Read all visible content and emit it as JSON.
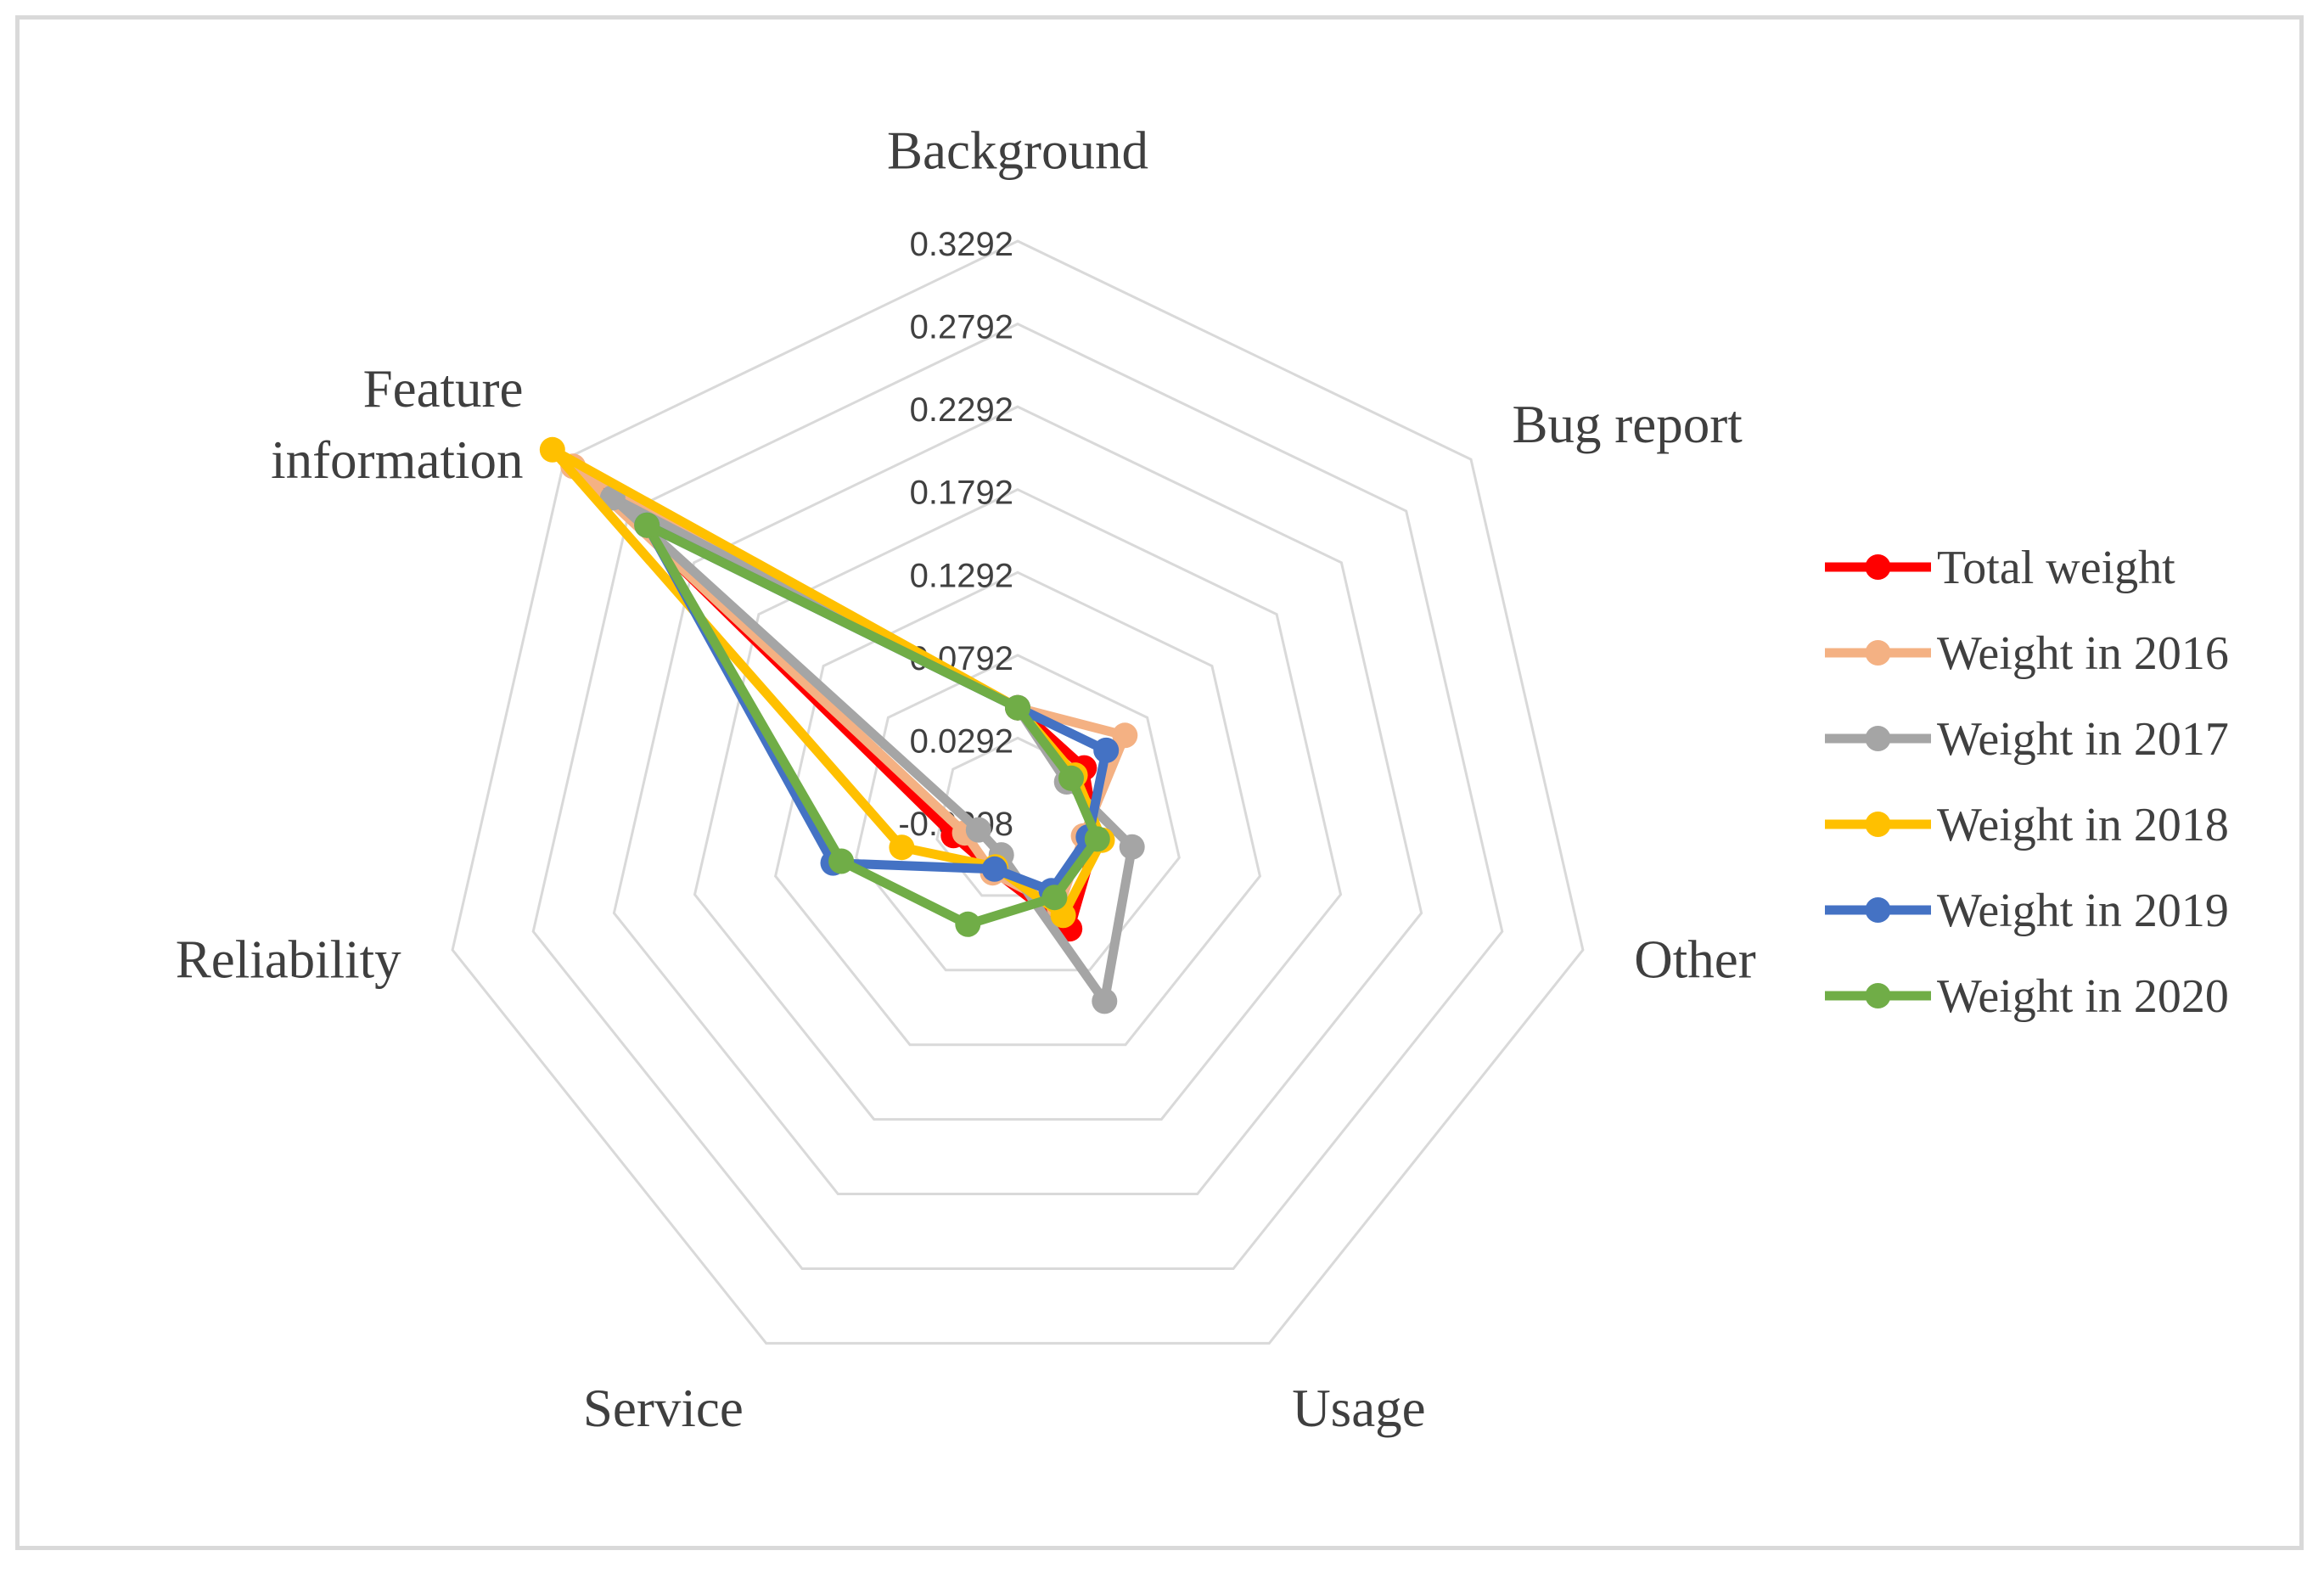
{
  "chart_data": {
    "type": "radar",
    "title": "",
    "axes": [
      "Background",
      "Bug report",
      "Other",
      "Usage",
      "Service",
      "Reliability",
      "Feature information"
    ],
    "axis_label_lines": [
      [
        "Background"
      ],
      [
        "Bug report"
      ],
      [
        "Other"
      ],
      [
        "Usage"
      ],
      [
        "Service"
      ],
      [
        "Reliability"
      ],
      [
        "Feature",
        "information"
      ]
    ],
    "radial_range": [
      -0.0208,
      0.3292
    ],
    "ticks": [
      "0.3292",
      "0.2792",
      "0.2292",
      "0.1792",
      "0.1292",
      "0.0792",
      "0.0292",
      "-0.0208"
    ],
    "tick_values": [
      0.3292,
      0.2792,
      0.2292,
      0.1792,
      0.1292,
      0.0792,
      0.0292,
      -0.0208
    ],
    "grid": true,
    "legend_position": "right",
    "series": [
      {
        "name": "Total weight",
        "color": "#ff0000",
        "values": [
          0.0475,
          0.0305,
          0.0275,
          0.0515,
          0.0125,
          0.019,
          0.3045
        ]
      },
      {
        "name": "Weight in 2016",
        "color": "#f4b183",
        "values": [
          0.0475,
          0.062,
          0.02,
          0.037,
          0.014,
          0.012,
          0.3225
        ]
      },
      {
        "name": "Weight in 2017",
        "color": "#a5a5a5",
        "values": [
          0.0475,
          0.017,
          0.05,
          0.1,
          0.002,
          0.0035,
          0.292
        ]
      },
      {
        "name": "Weight in 2018",
        "color": "#ffc000",
        "values": [
          0.0475,
          0.0235,
          0.0315,
          0.0425,
          0.01,
          0.051,
          0.3385
        ]
      },
      {
        "name": "Weight in 2019",
        "color": "#4472c4",
        "values": [
          0.0475,
          0.0475,
          0.023,
          0.026,
          0.0115,
          0.0935,
          0.2655
        ]
      },
      {
        "name": "Weight in 2020",
        "color": "#70ad47",
        "values": [
          0.0475,
          0.0205,
          0.0285,
          0.0305,
          0.0485,
          0.0885,
          0.2655
        ]
      }
    ]
  },
  "colors": {
    "grid": "#d9d9d9",
    "frame": "#d9d9d9"
  }
}
